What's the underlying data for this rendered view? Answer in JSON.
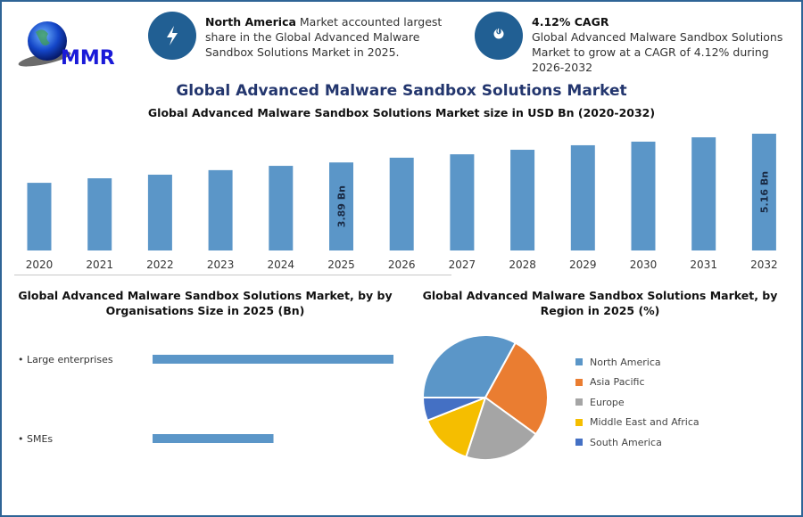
{
  "logo": {
    "text": "MMR"
  },
  "info": [
    {
      "icon": "lightning-bolt-icon",
      "bold": "North America",
      "text": " Market accounted largest share in the Global Advanced Malware Sandbox Solutions Market in 2025."
    },
    {
      "icon": "flame-drop-icon",
      "bold": "4.12% CAGR",
      "text": "Global Advanced Malware Sandbox Solutions Market to grow at a CAGR of 4.12% during 2026-2032"
    }
  ],
  "header": {
    "title": "Global Advanced Malware Sandbox Solutions Market",
    "subtitle": "Global Advanced Malware Sandbox Solutions Market size in USD Bn (2020-2032)"
  },
  "colors": {
    "bar": "#5b96c8",
    "title": "#23366e",
    "icon_bg": "#215f93"
  },
  "chart_data": [
    {
      "type": "bar",
      "title": "Global Advanced Malware Sandbox Solutions Market size in USD Bn (2020-2032)",
      "categories": [
        "2020",
        "2021",
        "2022",
        "2023",
        "2024",
        "2025",
        "2026",
        "2027",
        "2028",
        "2029",
        "2030",
        "2031",
        "2032"
      ],
      "values": [
        2.99,
        3.19,
        3.35,
        3.55,
        3.74,
        3.89,
        4.1,
        4.25,
        4.45,
        4.65,
        4.81,
        5.0,
        5.16
      ],
      "data_labels": {
        "2025": "3.89 Bn",
        "2032": "5.16 Bn"
      },
      "ylim": [
        0,
        5.16
      ],
      "grid": false
    },
    {
      "type": "bar",
      "orientation": "horizontal",
      "title": "Global Advanced Malware Sandbox Solutions Market, by by Organisations Size in 2025 (Bn)",
      "categories": [
        "Large enterprises",
        "SMEs"
      ],
      "values": [
        2.59,
        1.3
      ],
      "grid": false
    },
    {
      "type": "pie",
      "title": "Global Advanced Malware Sandbox Solutions Market, by Region in 2025 (%)",
      "categories": [
        "North America",
        "Asia Pacific",
        "Europe",
        "Middle East and Africa",
        "South America"
      ],
      "values": [
        33,
        27,
        20,
        14,
        6
      ],
      "colors": [
        "#5b96c8",
        "#ea7d31",
        "#a5a5a5",
        "#f5be00",
        "#4470c4"
      ],
      "legend": "right"
    }
  ]
}
